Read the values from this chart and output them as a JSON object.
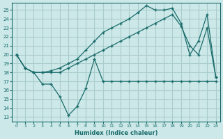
{
  "xlabel": "Humidex (Indice chaleur)",
  "background_color": "#cce8e8",
  "grid_color": "#aacccc",
  "line_color": "#1a6b6b",
  "xlim": [
    -0.5,
    23.5
  ],
  "ylim": [
    12.5,
    25.8
  ],
  "yticks": [
    13,
    14,
    15,
    16,
    17,
    18,
    19,
    20,
    21,
    22,
    23,
    24,
    25
  ],
  "xticks": [
    0,
    1,
    2,
    3,
    4,
    5,
    6,
    7,
    8,
    9,
    10,
    11,
    12,
    13,
    14,
    15,
    16,
    17,
    18,
    19,
    20,
    21,
    22,
    23
  ],
  "line1_x": [
    0,
    1,
    2,
    3,
    4,
    5,
    6,
    7,
    8,
    9,
    10,
    11,
    12,
    13,
    14,
    15,
    16,
    17,
    18,
    19,
    20,
    21,
    22,
    23
  ],
  "line1_y": [
    20,
    18.5,
    18,
    18,
    18,
    18,
    18.5,
    19,
    19.5,
    20,
    20.5,
    21,
    21.5,
    22,
    22.5,
    23,
    23.5,
    24,
    24.5,
    23.2,
    21,
    20,
    23,
    17.5
  ],
  "line2_x": [
    0,
    1,
    2,
    3,
    4,
    5,
    6,
    7,
    8,
    9,
    10,
    11,
    12,
    13,
    14,
    15,
    16,
    17,
    18,
    19,
    20,
    21,
    22,
    23
  ],
  "line2_y": [
    20,
    18.5,
    18,
    18,
    18.2,
    18.5,
    19,
    19.5,
    20.5,
    21.5,
    22.5,
    23,
    23.5,
    24,
    24.7,
    25.5,
    25,
    25,
    25.2,
    23.5,
    20,
    21.5,
    24.5,
    17.5
  ],
  "line3_x": [
    0,
    1,
    2,
    3,
    4,
    5,
    6,
    7,
    8,
    9,
    10,
    11,
    12,
    13,
    14,
    15,
    16,
    17,
    18,
    19,
    20,
    21,
    22,
    23
  ],
  "line3_y": [
    20,
    18.5,
    18,
    16.7,
    16.7,
    15.3,
    13.2,
    14.2,
    16.2,
    19.5,
    17,
    17,
    17,
    17,
    17,
    17,
    17,
    17,
    17,
    17,
    17,
    17,
    17,
    17
  ]
}
